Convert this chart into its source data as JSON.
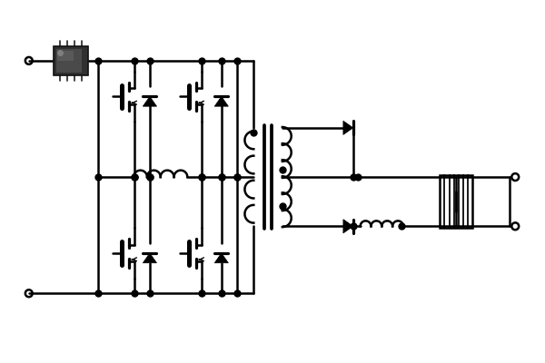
{
  "bg_color": "#ffffff",
  "lc": "#000000",
  "lw": 1.8,
  "fig_w": 6.0,
  "fig_h": 4.0,
  "dpi": 100
}
